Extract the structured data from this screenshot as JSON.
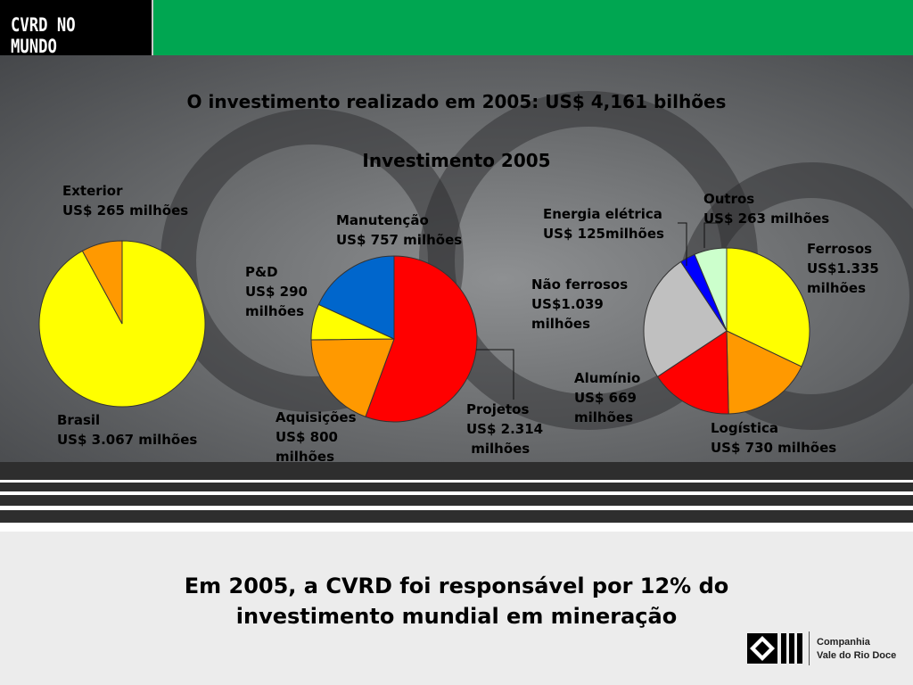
{
  "header": {
    "logo_text": "CVRD NO MUNDO"
  },
  "main_title": "O investimento realizado em 2005: US$ 4,161 bilhões",
  "footer_text": "Em 2005, a CVRD foi responsável por 12% do\ninvestimento mundial em mineração",
  "company_logo": {
    "name": "Companhia\nVale do Rio Doce"
  },
  "chart_data": [
    {
      "type": "pie",
      "title": "",
      "slices": [
        {
          "label": "Brasil\nUS$ 3.067 milhões",
          "value": 3067,
          "color": "#ffff00"
        },
        {
          "label": "Exterior\nUS$ 265 milhões",
          "value": 265,
          "color": "#ff9900"
        }
      ]
    },
    {
      "type": "pie",
      "title": "Investimento 2005",
      "slices": [
        {
          "label": "Projetos\nUS$ 2.314\n milhões",
          "value": 2314,
          "color": "#ff0000"
        },
        {
          "label": "Aquisições\nUS$ 800\nmilhões",
          "value": 800,
          "color": "#ff9900"
        },
        {
          "label": "P&D\nUS$ 290\nmilhões",
          "value": 290,
          "color": "#ffff00"
        },
        {
          "label": "Manutenção\nUS$ 757 milhões",
          "value": 757,
          "color": "#0066cc"
        }
      ]
    },
    {
      "type": "pie",
      "title": "",
      "slices": [
        {
          "label": "Ferrosos\nUS$1.335\nmilhões",
          "value": 1335,
          "color": "#ffff00"
        },
        {
          "label": "Logística\nUS$ 730 milhões",
          "value": 730,
          "color": "#ff9900"
        },
        {
          "label": "Alumínio\nUS$ 669\nmilhões",
          "value": 669,
          "color": "#ff0000"
        },
        {
          "label": "Não ferrosos\nUS$1.039\nmilhões",
          "value": 1039,
          "color": "#c0c0c0"
        },
        {
          "label": "Energia elétrica\nUS$ 125milhões",
          "value": 125,
          "color": "#0000ff"
        },
        {
          "label": "Outros\nUS$ 263 milhões",
          "value": 263,
          "color": "#ccffcc"
        }
      ]
    }
  ]
}
